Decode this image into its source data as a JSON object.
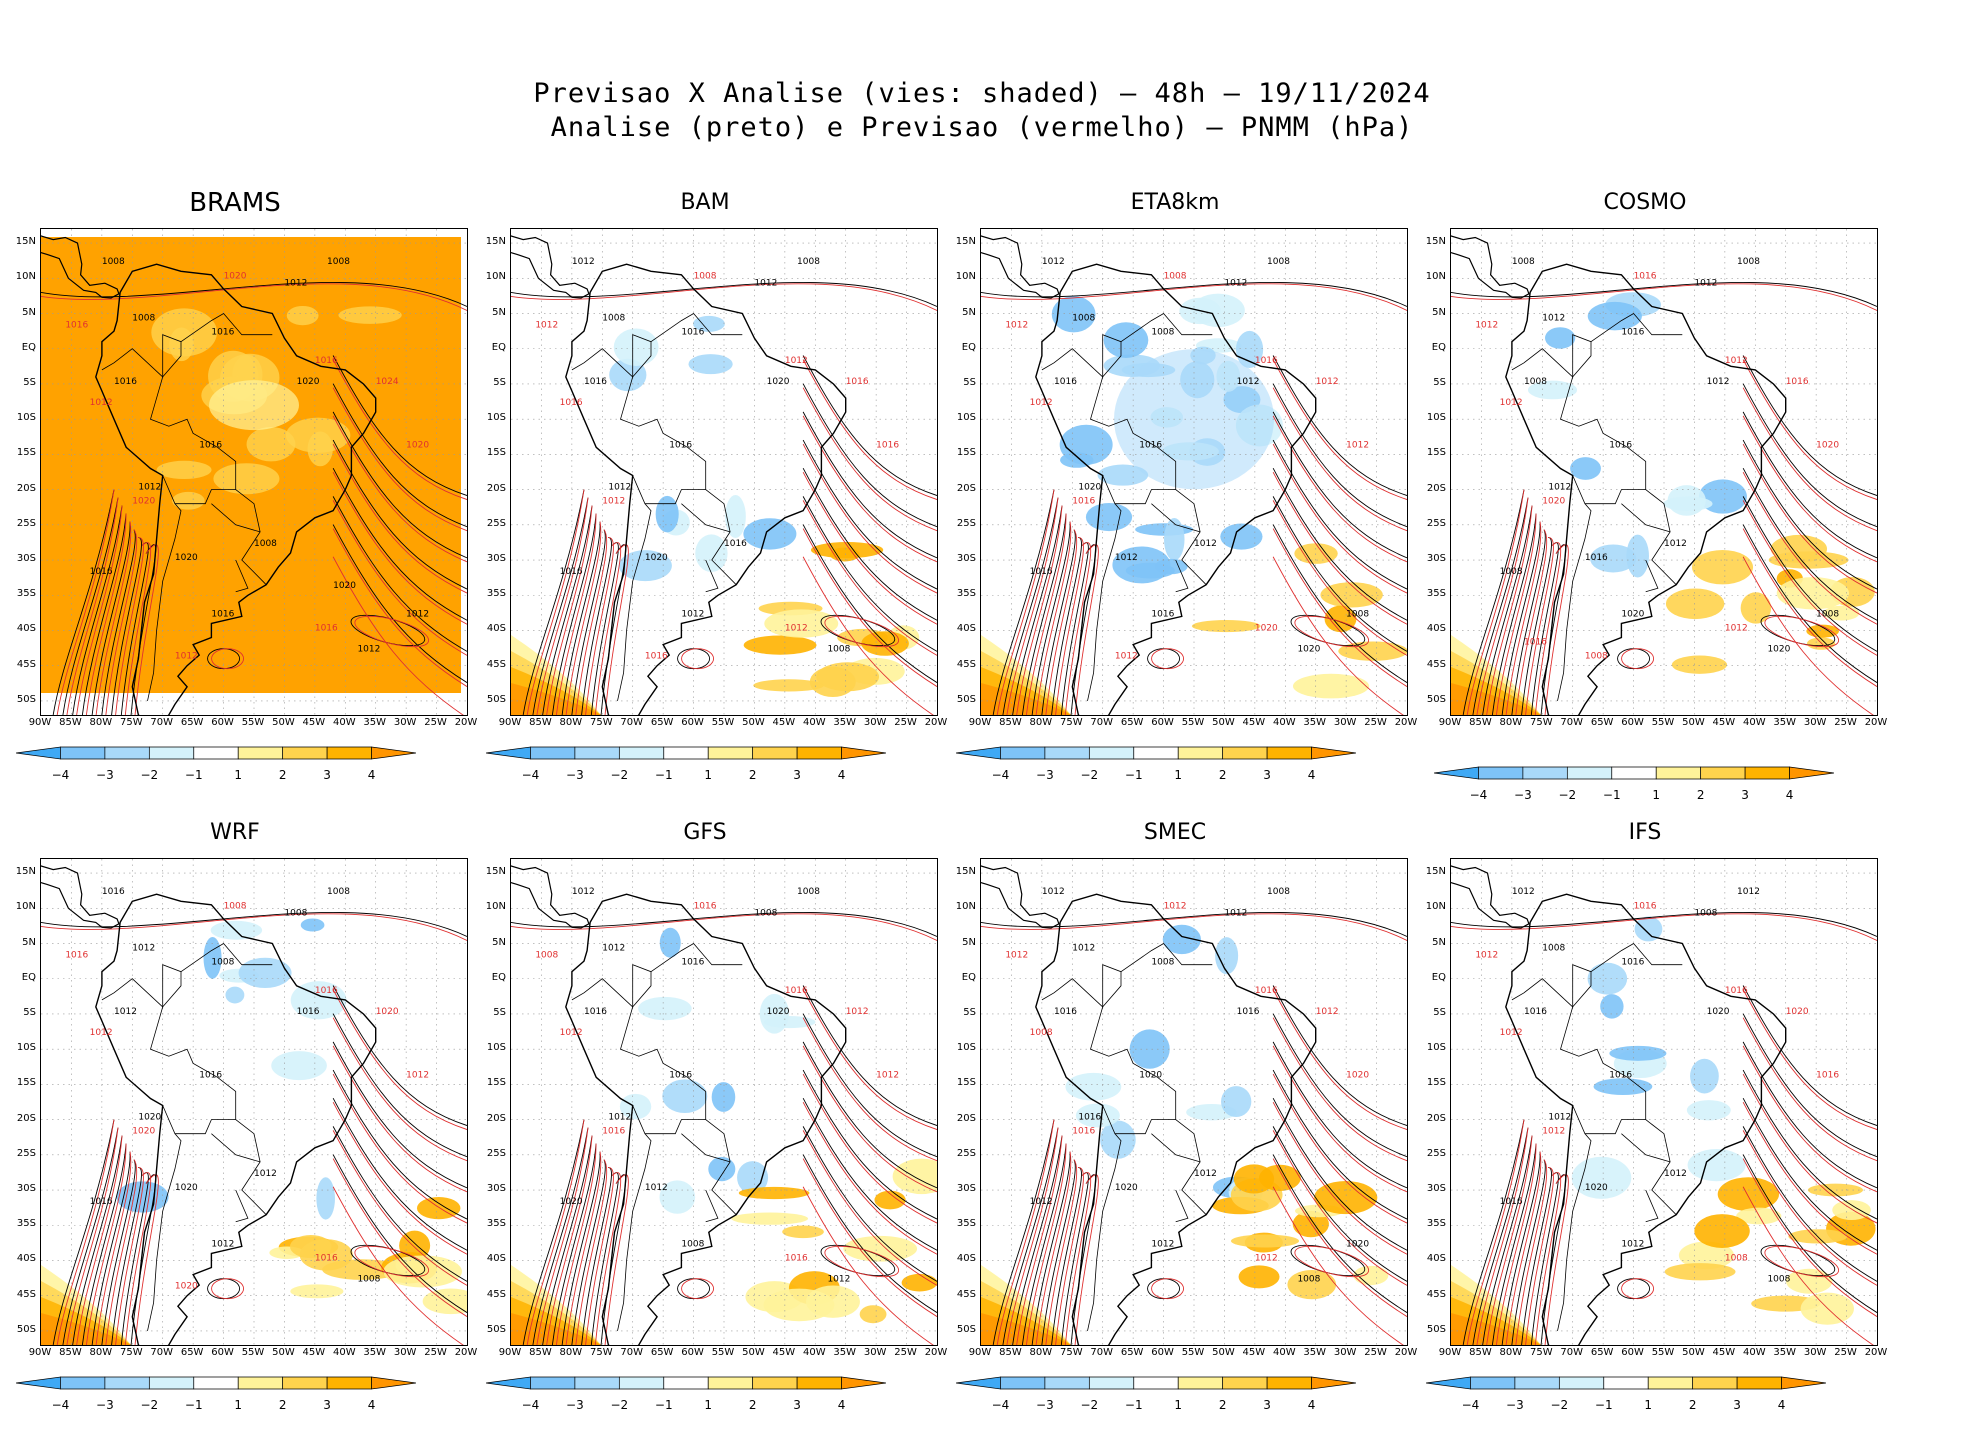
{
  "figure": {
    "title_line1": "Previsao X Analise (vies: shaded) – 48h – 19/11/2024",
    "title_line2": "Analise (preto) e Previsao (vermelho) – PNMM (hPa)"
  },
  "colorbar": {
    "labels": [
      "−4",
      "−3",
      "−2",
      "−1",
      "1",
      "2",
      "3",
      "4"
    ],
    "colors": [
      "#3fa9f5",
      "#7ec3f7",
      "#a9d9f9",
      "#d4f2fb",
      "#ffffff",
      "#fff39a",
      "#ffd34d",
      "#ffb300",
      "#ff9500"
    ]
  },
  "latitude_labels": [
    "15N",
    "10N",
    "5N",
    "EQ",
    "5S",
    "10S",
    "15S",
    "20S",
    "25S",
    "30S",
    "35S",
    "40S",
    "45S",
    "50S"
  ],
  "longitude_labels": [
    "90W",
    "85W",
    "80W",
    "75W",
    "70W",
    "65W",
    "60W",
    "55W",
    "50W",
    "45W",
    "40W",
    "35W",
    "30W",
    "25W",
    "20W"
  ],
  "colors": {
    "analysis_contour": "#000000",
    "forecast_contour": "#e03030",
    "coast": "#000000",
    "grid": "#9a9a9a"
  },
  "panels": [
    {
      "name": "BRAMS",
      "bias": "positive",
      "contour_labels_black": [
        "1008",
        "1008",
        "1012",
        "1008",
        "1016",
        "1016",
        "1020",
        "1016",
        "1012",
        "1016",
        "1020",
        "1016",
        "1012",
        "1008",
        "1012",
        "1020"
      ],
      "contour_labels_red": [
        "1016",
        "1012",
        "1020",
        "1016",
        "1024",
        "1020",
        "1020",
        "1016",
        "1012"
      ]
    },
    {
      "name": "BAM",
      "bias": "mixed",
      "contour_labels_black": [
        "1012",
        "1008",
        "1012",
        "1008",
        "1016",
        "1016",
        "1020",
        "1016",
        "1012",
        "1016",
        "1020",
        "1012",
        "1008",
        "1016"
      ],
      "contour_labels_red": [
        "1012",
        "1016",
        "1008",
        "1012",
        "1016",
        "1012",
        "1016",
        "1012",
        "1016"
      ]
    },
    {
      "name": "ETA8km",
      "bias": "negative",
      "contour_labels_black": [
        "1012",
        "1008",
        "1012",
        "1008",
        "1008",
        "1016",
        "1012",
        "1016",
        "1020",
        "1016",
        "1012",
        "1016",
        "1020",
        "1012",
        "1008"
      ],
      "contour_labels_red": [
        "1012",
        "1012",
        "1008",
        "1016",
        "1012",
        "1016",
        "1012",
        "1020",
        "1012"
      ]
    },
    {
      "name": "COSMO",
      "bias": "mixed",
      "contour_labels_black": [
        "1008",
        "1012",
        "1012",
        "1008",
        "1016",
        "1008",
        "1012",
        "1016",
        "1012",
        "1008",
        "1016",
        "1020",
        "1020",
        "1012",
        "1008"
      ],
      "contour_labels_red": [
        "1012",
        "1012",
        "1016",
        "1012",
        "1016",
        "1020",
        "1020",
        "1012",
        "1008",
        "1016"
      ]
    },
    {
      "name": "WRF",
      "bias": "mixed",
      "contour_labels_black": [
        "1016",
        "1012",
        "1008",
        "1008",
        "1008",
        "1012",
        "1016",
        "1016",
        "1020",
        "1016",
        "1020",
        "1012",
        "1008",
        "1012"
      ],
      "contour_labels_red": [
        "1016",
        "1012",
        "1008",
        "1016",
        "1020",
        "1020",
        "1012",
        "1016",
        "1020"
      ]
    },
    {
      "name": "GFS",
      "bias": "mixed",
      "contour_labels_black": [
        "1012",
        "1012",
        "1008",
        "1008",
        "1016",
        "1016",
        "1020",
        "1016",
        "1012",
        "1020",
        "1012",
        "1008",
        "1012"
      ],
      "contour_labels_red": [
        "1008",
        "1012",
        "1016",
        "1016",
        "1012",
        "1016",
        "1012",
        "1016"
      ]
    },
    {
      "name": "SMEC",
      "bias": "mixed",
      "contour_labels_black": [
        "1012",
        "1012",
        "1012",
        "1008",
        "1008",
        "1016",
        "1016",
        "1020",
        "1016",
        "1012",
        "1020",
        "1012",
        "1008",
        "1012",
        "1020"
      ],
      "contour_labels_red": [
        "1012",
        "1008",
        "1012",
        "1016",
        "1012",
        "1016",
        "1020",
        "1012"
      ]
    },
    {
      "name": "IFS",
      "bias": "mixed",
      "contour_labels_black": [
        "1012",
        "1008",
        "1008",
        "1012",
        "1016",
        "1016",
        "1020",
        "1016",
        "1012",
        "1016",
        "1020",
        "1012",
        "1008",
        "1012"
      ],
      "contour_labels_red": [
        "1012",
        "1012",
        "1016",
        "1016",
        "1020",
        "1012",
        "1016",
        "1008"
      ]
    }
  ]
}
